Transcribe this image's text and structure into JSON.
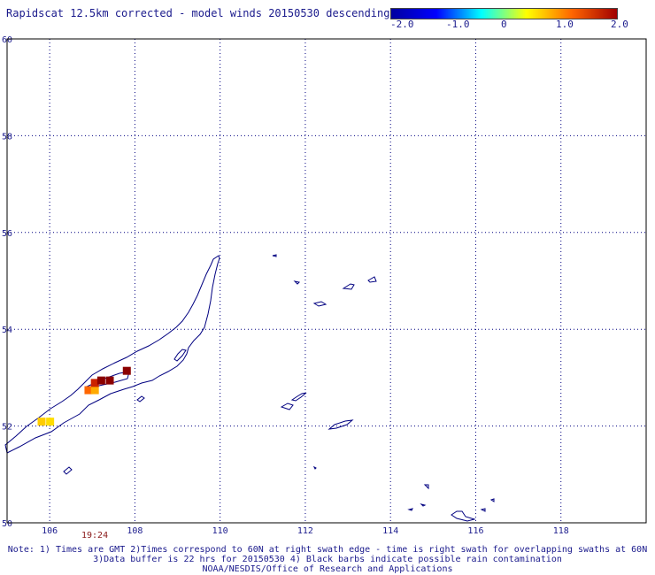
{
  "title": "Rapidscat 12.5km corrected - model winds 20150530 descending",
  "colorbar": {
    "labels": [
      "-2.0",
      "-1.0",
      "0",
      "1.0",
      "2.0"
    ],
    "colors": [
      "#0000a0",
      "#0000ff",
      "#00ffff",
      "#ffff00",
      "#ff6600",
      "#a00000"
    ]
  },
  "map": {
    "lat_labels": [
      "60",
      "58",
      "56",
      "54",
      "52",
      "50"
    ],
    "lon_labels": [
      "106",
      "108",
      "110",
      "112",
      "114",
      "116",
      "118"
    ],
    "lat_range": [
      50,
      60
    ],
    "lon_range": [
      105,
      120
    ],
    "coast_color": "#000080",
    "grid": "dotted"
  },
  "time_label": "19:24",
  "notes": [
    "Note: 1) Times are GMT 2)Times correspond to 60N at right swath edge - time is right swath for overlapping swaths at 60N",
    "3)Data buffer is 22 hrs for 20150530 4) Black barbs indicate possible rain contamination",
    "NOAA/NESDIS/Office of Research and Applications"
  ],
  "wind_cells": [
    {
      "lon": 105.8,
      "lat": 52.1,
      "value": 1.2,
      "color": "#ffcc00"
    },
    {
      "lon": 106.0,
      "lat": 52.1,
      "value": 1.1,
      "color": "#ffdd00"
    },
    {
      "lon": 106.9,
      "lat": 52.75,
      "value": 1.5,
      "color": "#ff6600"
    },
    {
      "lon": 107.05,
      "lat": 52.75,
      "value": 1.3,
      "color": "#ffaa00"
    },
    {
      "lon": 107.05,
      "lat": 52.9,
      "value": 1.8,
      "color": "#cc2200"
    },
    {
      "lon": 107.2,
      "lat": 52.95,
      "value": 2.0,
      "color": "#8b0000"
    },
    {
      "lon": 107.4,
      "lat": 52.95,
      "value": 2.0,
      "color": "#8b0000"
    },
    {
      "lon": 107.8,
      "lat": 53.15,
      "value": 2.0,
      "color": "#8b0000"
    }
  ]
}
